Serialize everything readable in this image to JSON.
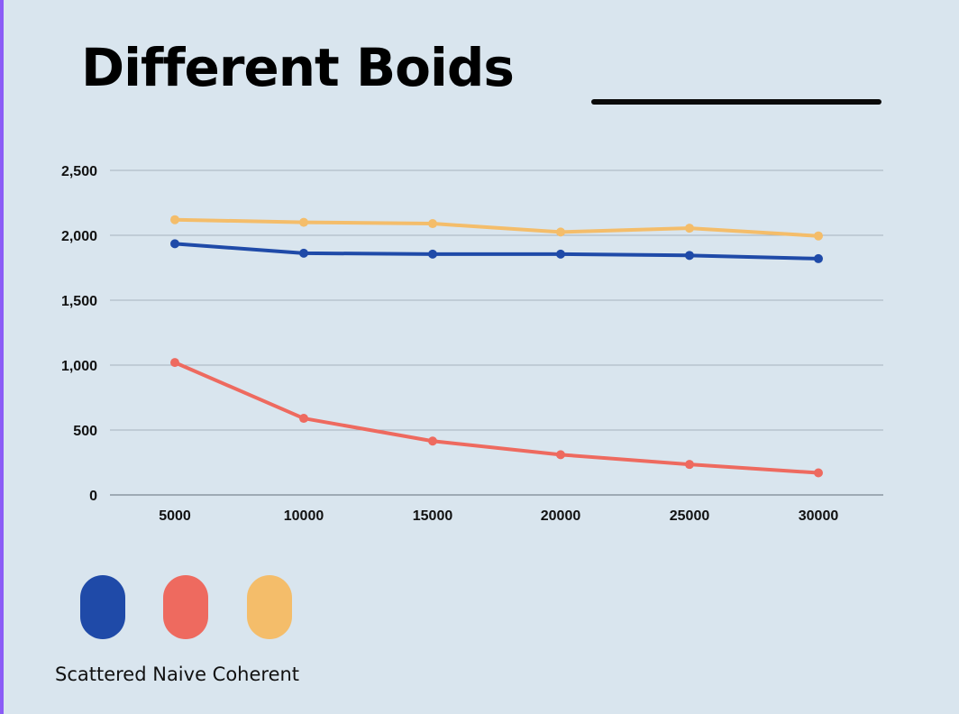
{
  "chart_data": {
    "type": "line",
    "title": "Different Boids",
    "x": [
      5000,
      10000,
      15000,
      20000,
      25000,
      30000
    ],
    "x_tick_labels": [
      "5000",
      "10000",
      "15000",
      "20000",
      "25000",
      "30000"
    ],
    "y_tick_values": [
      0,
      500,
      1000,
      1500,
      2000,
      2500
    ],
    "y_tick_labels": [
      "0",
      "500",
      "1,000",
      "1,500",
      "2,000",
      "2,500"
    ],
    "ylim": [
      0,
      2500
    ],
    "grid": true,
    "legend_placement": "bottom-left",
    "legend_text": "Scattered Naive Coherent",
    "series": [
      {
        "name": "Scattered",
        "color": "#1f4aa8",
        "values": [
          1935,
          1862,
          1855,
          1855,
          1845,
          1820
        ]
      },
      {
        "name": "Naive",
        "color": "#ee6a5f",
        "values": [
          1020,
          590,
          415,
          310,
          235,
          170
        ]
      },
      {
        "name": "Coherent",
        "color": "#f4bd6a",
        "values": [
          2120,
          2100,
          2090,
          2025,
          2055,
          1995
        ]
      }
    ]
  }
}
